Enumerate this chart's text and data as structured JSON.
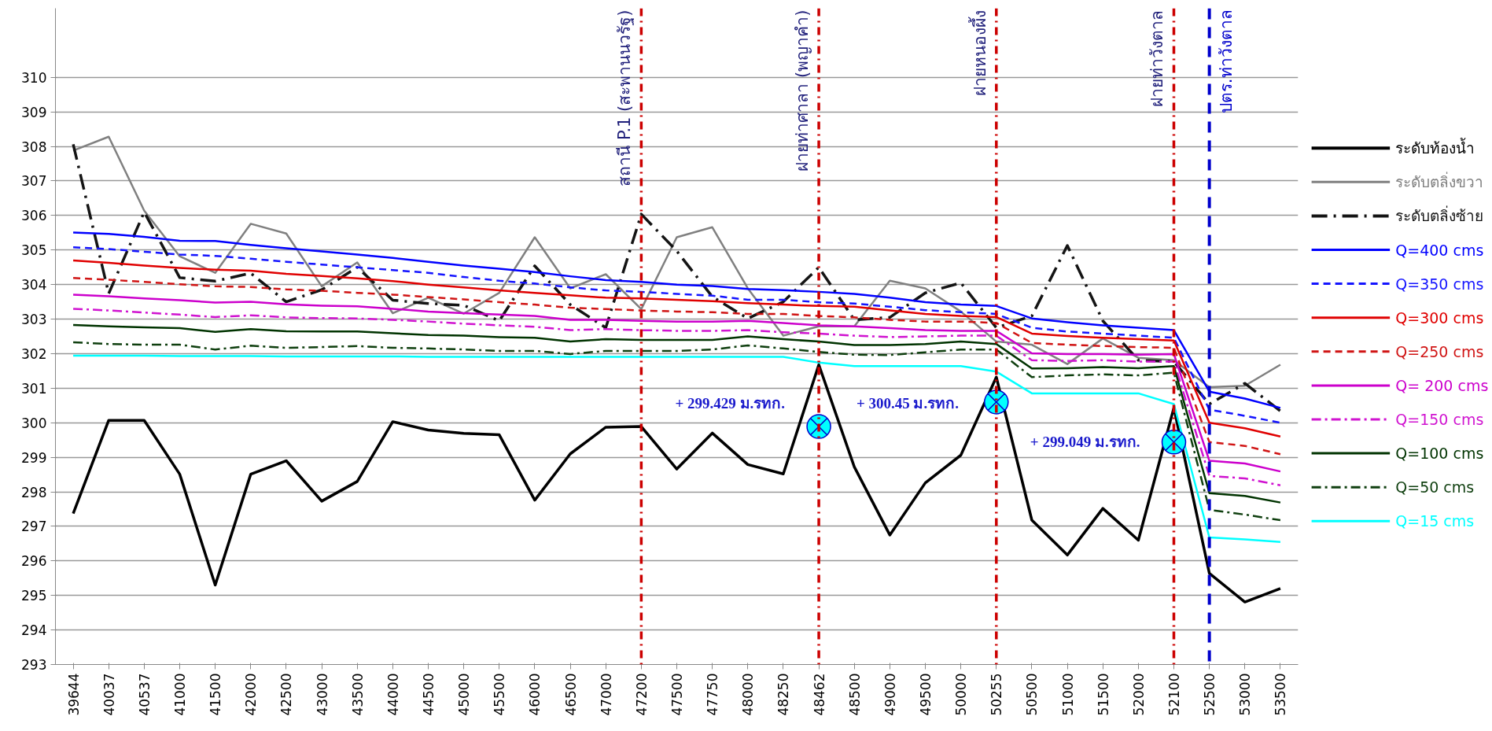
{
  "chart_data": {
    "type": "line",
    "categories": [
      "39644",
      "40037",
      "40537",
      "41000",
      "41500",
      "42000",
      "42500",
      "43000",
      "43500",
      "44000",
      "44500",
      "45000",
      "45500",
      "46000",
      "46500",
      "47000",
      "47200",
      "47500",
      "47750",
      "48000",
      "48250",
      "48462",
      "48500",
      "49000",
      "49500",
      "50000",
      "50255",
      "50500",
      "51000",
      "51500",
      "52000",
      "52100",
      "52500",
      "53000",
      "53500"
    ],
    "ylim": [
      293,
      312
    ],
    "yticks": [
      293,
      294,
      295,
      296,
      297,
      298,
      299,
      300,
      301,
      302,
      303,
      304,
      305,
      306,
      307,
      308,
      309,
      310
    ],
    "grid": "y",
    "legend": "right",
    "marker": "none",
    "series": [
      {
        "name": "ระดับท้องน้ำ",
        "color": "#000000",
        "line_style": "solid",
        "values": [
          297.37,
          300.07,
          300.07,
          298.51,
          295.3,
          298.51,
          298.9,
          297.73,
          298.3,
          300.03,
          299.79,
          299.69,
          299.65,
          297.76,
          299.1,
          299.87,
          299.89,
          298.66,
          299.7,
          298.79,
          298.52,
          301.68,
          298.72,
          296.75,
          298.26,
          299.06,
          301.32,
          297.18,
          296.17,
          297.52,
          296.6,
          300.43,
          295.64,
          294.81,
          295.2
        ]
      },
      {
        "name": "ระดับตลิ่งขวา",
        "color": "#808080",
        "line_style": "solid",
        "values": [
          307.88,
          308.28,
          306.14,
          304.82,
          304.34,
          305.76,
          305.48,
          303.95,
          304.64,
          303.17,
          303.62,
          303.16,
          303.76,
          305.37,
          303.89,
          304.3,
          303.29,
          305.37,
          305.66,
          303.89,
          302.52,
          302.79,
          302.79,
          304.11,
          303.89,
          303.22,
          302.35,
          302.26,
          301.7,
          302.44,
          301.88,
          301.81,
          301.03,
          301.07,
          301.68
        ]
      },
      {
        "name": "ระดับตลิ่งซ้าย",
        "color": "#141414",
        "line_style": "dashdot",
        "values": [
          308.06,
          303.74,
          306.1,
          304.2,
          304.1,
          304.33,
          303.5,
          303.85,
          304.5,
          303.55,
          303.45,
          303.4,
          302.95,
          304.54,
          303.42,
          302.75,
          306.04,
          304.97,
          303.65,
          303.02,
          303.5,
          304.5,
          302.98,
          303.05,
          303.76,
          304.05,
          302.75,
          303.09,
          305.13,
          302.95,
          301.81,
          301.77,
          300.54,
          301.14,
          300.34
        ]
      },
      {
        "name": "Q=400 cms",
        "color": "#0000ff",
        "line_style": "solid",
        "values": [
          305.51,
          305.47,
          305.38,
          305.27,
          305.26,
          305.15,
          305.05,
          304.96,
          304.87,
          304.77,
          304.66,
          304.55,
          304.46,
          304.36,
          304.24,
          304.13,
          304.08,
          304.0,
          303.96,
          303.87,
          303.84,
          303.79,
          303.73,
          303.62,
          303.49,
          303.42,
          303.38,
          303.02,
          302.91,
          302.82,
          302.75,
          302.68,
          300.9,
          300.7,
          300.43
        ]
      },
      {
        "name": "Q=350 cms",
        "color": "#1414ff",
        "line_style": "dashed",
        "values": [
          305.08,
          305.03,
          304.95,
          304.87,
          304.83,
          304.75,
          304.66,
          304.58,
          304.5,
          304.42,
          304.34,
          304.22,
          304.11,
          304.03,
          303.92,
          303.83,
          303.79,
          303.73,
          303.68,
          303.56,
          303.56,
          303.49,
          303.45,
          303.36,
          303.26,
          303.2,
          303.15,
          302.75,
          302.64,
          302.58,
          302.52,
          302.46,
          300.38,
          300.2,
          300.0
        ]
      },
      {
        "name": "Q=300 cms",
        "color": "#e00000",
        "line_style": "solid",
        "values": [
          304.7,
          304.63,
          304.55,
          304.48,
          304.43,
          304.4,
          304.31,
          304.25,
          304.18,
          304.1,
          304.0,
          303.92,
          303.83,
          303.76,
          303.69,
          303.62,
          303.6,
          303.56,
          303.52,
          303.46,
          303.42,
          303.38,
          303.36,
          303.25,
          303.15,
          303.09,
          303.06,
          302.58,
          302.51,
          302.46,
          302.42,
          302.38,
          300.0,
          299.84,
          299.6
        ]
      },
      {
        "name": "Q=250 cms",
        "color": "#d01414",
        "line_style": "dashed",
        "values": [
          304.19,
          304.14,
          304.08,
          304.01,
          303.95,
          303.93,
          303.86,
          303.82,
          303.76,
          303.71,
          303.64,
          303.57,
          303.49,
          303.42,
          303.33,
          303.29,
          303.25,
          303.22,
          303.2,
          303.15,
          303.15,
          303.09,
          303.05,
          302.98,
          302.93,
          302.93,
          302.89,
          302.31,
          302.26,
          302.22,
          302.19,
          302.17,
          299.44,
          299.33,
          299.09
        ]
      },
      {
        "name": "Q= 200 cms",
        "color": "#cc00cc",
        "line_style": "solid",
        "values": [
          303.71,
          303.66,
          303.6,
          303.55,
          303.48,
          303.5,
          303.43,
          303.39,
          303.37,
          303.3,
          303.22,
          303.17,
          303.13,
          303.09,
          302.98,
          302.98,
          302.95,
          302.93,
          302.93,
          302.95,
          302.89,
          302.82,
          302.79,
          302.74,
          302.68,
          302.66,
          302.66,
          302.01,
          301.99,
          301.99,
          301.97,
          301.99,
          298.9,
          298.82,
          298.59
        ]
      },
      {
        "name": "Q=150 cms",
        "color": "#d014d0",
        "line_style": "dashdot",
        "values": [
          303.3,
          303.25,
          303.19,
          303.13,
          303.06,
          303.11,
          303.05,
          303.03,
          303.02,
          302.98,
          302.93,
          302.87,
          302.82,
          302.78,
          302.68,
          302.71,
          302.68,
          302.66,
          302.66,
          302.68,
          302.62,
          302.58,
          302.52,
          302.48,
          302.5,
          302.52,
          302.52,
          301.81,
          301.79,
          301.81,
          301.77,
          301.77,
          298.46,
          298.39,
          298.19
        ]
      },
      {
        "name": "Q=100 cms",
        "color": "#003300",
        "line_style": "solid",
        "values": [
          302.83,
          302.79,
          302.76,
          302.74,
          302.63,
          302.71,
          302.65,
          302.64,
          302.64,
          302.59,
          302.54,
          302.52,
          302.48,
          302.46,
          302.35,
          302.42,
          302.4,
          302.4,
          302.4,
          302.5,
          302.42,
          302.35,
          302.25,
          302.25,
          302.28,
          302.35,
          302.28,
          301.57,
          301.58,
          301.61,
          301.58,
          301.64,
          297.96,
          297.88,
          297.69
        ]
      },
      {
        "name": "Q=50 cms",
        "color": "#0f3f0f",
        "line_style": "dashdot",
        "values": [
          302.33,
          302.28,
          302.26,
          302.26,
          302.12,
          302.23,
          302.17,
          302.19,
          302.22,
          302.17,
          302.15,
          302.12,
          302.08,
          302.08,
          301.99,
          302.08,
          302.08,
          302.08,
          302.12,
          302.24,
          302.15,
          302.05,
          301.97,
          301.96,
          302.04,
          302.12,
          302.12,
          301.32,
          301.37,
          301.4,
          301.37,
          301.45,
          297.48,
          297.34,
          297.18
        ]
      },
      {
        "name": "Q=15 cms",
        "color": "#00ffff",
        "line_style": "solid",
        "values": [
          301.94,
          301.94,
          301.94,
          301.93,
          301.93,
          301.93,
          301.92,
          301.92,
          301.92,
          301.92,
          301.91,
          301.91,
          301.91,
          301.91,
          301.91,
          301.91,
          301.91,
          301.91,
          301.91,
          301.91,
          301.91,
          301.74,
          301.64,
          301.64,
          301.64,
          301.64,
          301.48,
          300.85,
          300.85,
          300.85,
          300.85,
          300.54,
          296.68,
          296.62,
          296.55
        ]
      },
      {
        "type": "scatter",
        "marker": "circle",
        "color": "#00ffff",
        "x": [
          "48462",
          "50255",
          "52100"
        ],
        "values": [
          299.89,
          300.6,
          299.44
        ]
      }
    ],
    "ref_lines": [
      {
        "axis": "x",
        "value": "47200",
        "label": "สถานี P.1 (สะพานนวรัฐ)",
        "color": "#cc0000",
        "line_style": "dashdot"
      },
      {
        "axis": "x",
        "value": "48462",
        "label": "ฝายท่าศาลา (พญาคำ)",
        "color": "#cc0000",
        "line_style": "dashdot"
      },
      {
        "axis": "x",
        "value": "50255",
        "label": "ฝายหนองผึ้ง",
        "color": "#cc0000",
        "line_style": "dashdot"
      },
      {
        "axis": "x",
        "value": "52100",
        "label": "ฝายท่าวังตาล",
        "color": "#cc0000",
        "line_style": "dashdot"
      },
      {
        "axis": "x",
        "value": "52500",
        "label": "ปตร.ท่าวังตาล",
        "color": "#0000cc",
        "line_style": "dashed"
      }
    ],
    "annotations": [
      "+ 299.429 ม.รทก.",
      "+ 300.45 ม.รทก.",
      "+ 299.049 ม.รทก."
    ]
  }
}
